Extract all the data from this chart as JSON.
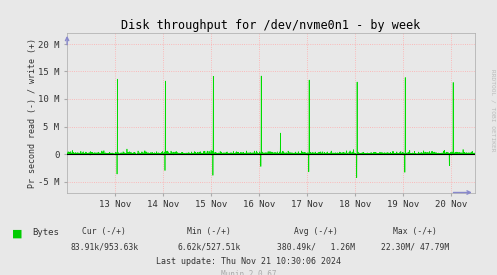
{
  "title": "Disk throughput for /dev/nvme0n1 - by week",
  "ylabel": "Pr second read (-) / write (+)",
  "background_color": "#e8e8e8",
  "plot_bg_color": "#e8e8e8",
  "grid_color": "#ffaaaa",
  "line_color": "#00dd00",
  "zero_line_color": "#000000",
  "ylim": [
    -7000000,
    22000000
  ],
  "yticks": [
    -5000000,
    0,
    5000000,
    10000000,
    15000000,
    20000000
  ],
  "ytick_labels": [
    "-5 M",
    "0",
    "5 M",
    "10 M",
    "15 M",
    "20 M"
  ],
  "xtick_positions": [
    1,
    2,
    3,
    4,
    5,
    6,
    7,
    8
  ],
  "xtick_labels": [
    "13 Nov",
    "14 Nov",
    "15 Nov",
    "16 Nov",
    "17 Nov",
    "18 Nov",
    "19 Nov",
    "20 Nov"
  ],
  "legend_label": "Bytes",
  "legend_color": "#00cc00",
  "footer_cur_label": "Cur (-/+)",
  "footer_cur_val": "83.91k/953.63k",
  "footer_min_label": "Min (-/+)",
  "footer_min_val": "6.62k/527.51k",
  "footer_avg_label": "Avg (-/+)",
  "footer_avg_val": "380.49k/   1.26M",
  "footer_max_label": "Max (-/+)",
  "footer_max_val": "22.30M/ 47.79M",
  "footer_update": "Last update: Thu Nov 21 10:30:06 2024",
  "munin_version": "Munin 2.0.67",
  "rrdtool_label": "RRDTOOL / TOBI OETIKER",
  "spine_color": "#aaaaaa",
  "arrow_color": "#8888cc",
  "text_color": "#333333"
}
